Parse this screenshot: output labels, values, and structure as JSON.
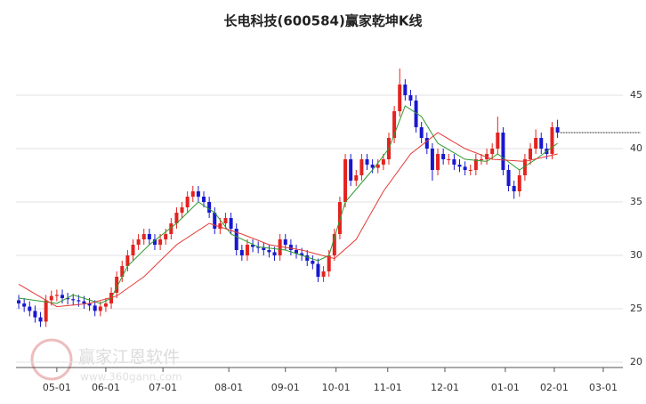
{
  "chart_data": {
    "type": "candlestick",
    "title": "长电科技(600584)赢家乾坤K线",
    "watermark": [
      "赢家江恩软件",
      "www.360gann.com"
    ],
    "up_color": "#e3231f",
    "down_color": "#1818d0",
    "xlim": [
      -0.5,
      111
    ],
    "ylim": [
      19.5,
      51
    ],
    "grid": true,
    "yticks": [
      20,
      25,
      30,
      35,
      40,
      45
    ],
    "xticks": [
      {
        "value": 7,
        "label": "05-01"
      },
      {
        "value": 16,
        "label": "06-01"
      },
      {
        "value": 26.5,
        "label": "07-01"
      },
      {
        "value": 38.6,
        "label": "08-01"
      },
      {
        "value": 49,
        "label": "09-01"
      },
      {
        "value": 58.3,
        "label": "10-01"
      },
      {
        "value": 67.8,
        "label": "11-01"
      },
      {
        "value": 78.3,
        "label": "12-01"
      },
      {
        "value": 89.4,
        "label": "01-01"
      },
      {
        "value": 98.4,
        "label": "02-01"
      },
      {
        "value": 107.4,
        "label": "03-01"
      }
    ],
    "open": [
      25.8,
      25.5,
      25.2,
      24.8,
      24.2,
      23.8,
      25.8,
      26.2,
      26.3,
      26.0,
      25.9,
      25.8,
      25.7,
      25.5,
      25.3,
      24.8,
      25.2,
      25.5,
      26.5,
      28.0,
      29.0,
      30.0,
      31.0,
      31.5,
      32.0,
      31.5,
      31.0,
      31.5,
      32.0,
      33.0,
      34.0,
      34.5,
      35.5,
      36.0,
      35.5,
      35.0,
      34.0,
      32.5,
      33.0,
      33.5,
      32.5,
      30.5,
      30.0,
      31.0,
      30.8,
      30.7,
      30.5,
      30.3,
      30.0,
      31.5,
      31.0,
      30.5,
      30.2,
      30.0,
      29.5,
      29.2,
      28.0,
      28.5,
      30.0,
      32.0,
      35.0,
      39.0,
      37.0,
      37.5,
      39.0,
      38.5,
      38.2,
      38.5,
      39.0,
      41.0,
      43.5,
      46.0,
      45.0,
      44.5,
      42.0,
      41.0,
      40.0,
      38.0,
      39.5,
      39.0,
      39.0,
      38.5,
      38.3,
      38.0,
      38.0,
      39.0,
      39.0,
      39.5,
      40.0,
      41.5,
      38.0,
      36.5,
      36.0,
      37.5,
      39.0,
      40.0,
      41.0,
      40.0,
      39.5,
      42.0
    ],
    "high": [
      26.3,
      26.0,
      25.7,
      25.3,
      24.7,
      26.3,
      26.7,
      26.8,
      26.8,
      26.5,
      26.4,
      26.3,
      26.2,
      26.0,
      25.8,
      25.7,
      26.0,
      27.0,
      28.5,
      29.5,
      30.5,
      31.5,
      32.0,
      32.5,
      32.5,
      32.0,
      32.0,
      32.5,
      33.5,
      34.5,
      35.0,
      36.0,
      36.5,
      36.5,
      36.0,
      35.5,
      34.5,
      33.5,
      34.0,
      34.0,
      33.0,
      31.0,
      31.5,
      31.5,
      31.3,
      31.2,
      31.0,
      30.8,
      32.0,
      32.0,
      31.5,
      31.0,
      30.7,
      30.5,
      30.0,
      29.7,
      29.0,
      30.5,
      32.5,
      35.5,
      39.5,
      39.5,
      38.0,
      39.5,
      39.5,
      39.0,
      39.0,
      39.5,
      41.5,
      44.0,
      47.5,
      46.5,
      45.5,
      45.0,
      42.5,
      41.5,
      40.5,
      40.0,
      40.0,
      39.5,
      39.5,
      39.0,
      38.8,
      38.5,
      39.5,
      39.5,
      40.0,
      40.5,
      43.0,
      42.0,
      38.5,
      37.0,
      38.0,
      39.5,
      40.5,
      41.8,
      41.5,
      40.5,
      42.5,
      42.7
    ],
    "low": [
      25.0,
      24.7,
      24.3,
      23.7,
      23.3,
      23.3,
      25.3,
      25.7,
      25.5,
      25.4,
      25.3,
      25.2,
      25.0,
      24.8,
      24.3,
      24.3,
      24.7,
      25.0,
      26.0,
      27.5,
      28.5,
      29.5,
      30.5,
      31.0,
      31.0,
      30.5,
      30.5,
      31.0,
      31.5,
      32.5,
      33.5,
      34.0,
      35.0,
      35.0,
      34.5,
      33.5,
      32.0,
      32.0,
      32.5,
      32.0,
      30.0,
      29.5,
      29.5,
      30.3,
      30.2,
      30.0,
      29.8,
      29.5,
      29.5,
      30.5,
      30.0,
      29.7,
      29.5,
      29.0,
      28.7,
      27.5,
      27.5,
      28.0,
      29.5,
      31.5,
      34.5,
      36.5,
      36.5,
      37.0,
      38.0,
      37.7,
      37.7,
      38.0,
      38.5,
      40.5,
      43.0,
      44.5,
      44.0,
      41.5,
      40.5,
      39.5,
      37.0,
      37.5,
      38.5,
      38.5,
      38.0,
      37.8,
      37.5,
      37.5,
      37.5,
      38.5,
      38.5,
      39.0,
      39.5,
      37.5,
      36.0,
      35.3,
      35.5,
      37.0,
      38.5,
      39.5,
      39.5,
      39.0,
      39.0,
      41.0
    ],
    "close": [
      25.5,
      25.2,
      24.8,
      24.2,
      23.8,
      25.8,
      26.2,
      26.3,
      26.0,
      25.9,
      25.8,
      25.7,
      25.5,
      25.3,
      24.8,
      25.2,
      25.5,
      26.5,
      28.0,
      29.0,
      30.0,
      31.0,
      31.5,
      32.0,
      31.5,
      31.0,
      31.5,
      32.0,
      33.0,
      34.0,
      34.5,
      35.5,
      36.0,
      35.5,
      35.0,
      34.0,
      32.5,
      33.0,
      33.5,
      32.5,
      30.5,
      30.0,
      31.0,
      30.8,
      30.7,
      30.5,
      30.3,
      30.0,
      31.5,
      31.0,
      30.5,
      30.2,
      30.0,
      29.5,
      29.2,
      28.0,
      28.5,
      30.0,
      32.0,
      35.0,
      39.0,
      37.0,
      37.5,
      39.0,
      38.5,
      38.2,
      38.5,
      39.0,
      41.0,
      43.5,
      46.0,
      45.0,
      44.5,
      42.0,
      41.0,
      40.0,
      38.0,
      39.5,
      39.0,
      39.0,
      38.5,
      38.3,
      38.0,
      38.0,
      39.0,
      39.0,
      39.5,
      40.0,
      41.5,
      38.0,
      36.5,
      36.0,
      37.5,
      39.0,
      40.0,
      41.0,
      40.0,
      39.5,
      42.0,
      41.5
    ],
    "lines": [
      {
        "color": "#2e9a2e",
        "x": [
          0,
          7,
          10,
          15,
          17,
          20,
          24,
          29,
          33,
          36,
          39,
          44,
          49,
          55,
          57,
          60,
          65,
          68,
          71,
          74,
          77,
          82,
          86,
          88,
          92,
          95,
          99
        ],
        "values": [
          26,
          25.5,
          26.3,
          25.5,
          26,
          29,
          31,
          33,
          35,
          34,
          32,
          30.8,
          30.5,
          29.5,
          30,
          35,
          38,
          40,
          44,
          43,
          40.5,
          39,
          38.8,
          39.5,
          38,
          39,
          40.5
        ]
      },
      {
        "color": "#e53935",
        "x": [
          0,
          7,
          13,
          18,
          23,
          29,
          35,
          41,
          46,
          52,
          58,
          62,
          67,
          72,
          77,
          82,
          87,
          93,
          99
        ],
        "values": [
          27.3,
          25.2,
          25.5,
          26.2,
          28,
          31,
          33,
          32,
          31,
          30.5,
          29.7,
          31.5,
          36,
          39.5,
          41.5,
          40,
          39,
          38.8,
          39.5
        ]
      }
    ]
  }
}
